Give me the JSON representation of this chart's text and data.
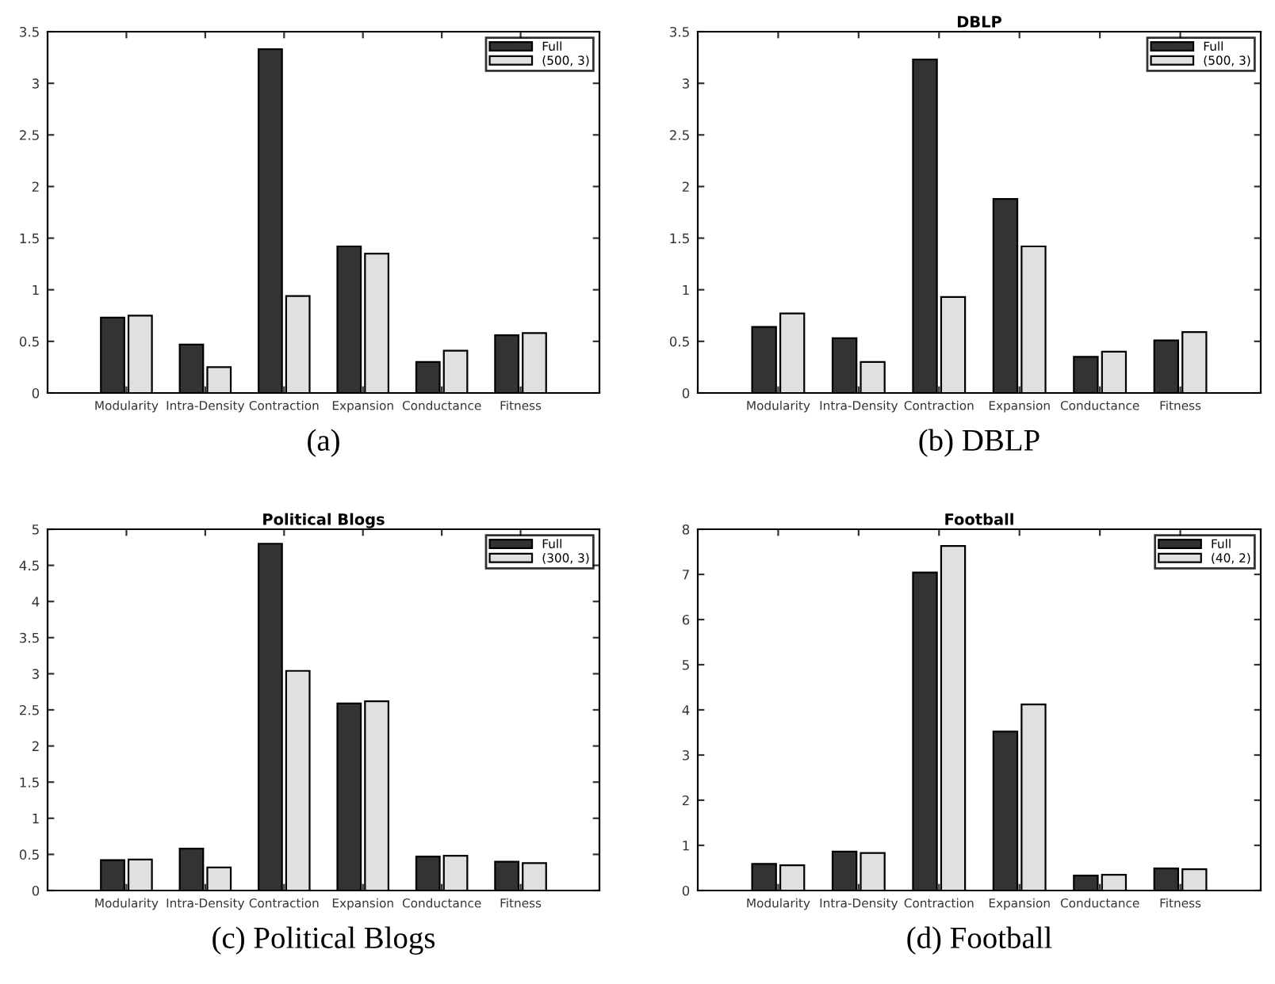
{
  "chart_data": [
    {
      "type": "bar",
      "categories": [
        "Modularity",
        "Intra-Density",
        "Contraction",
        "Expansion",
        "Conductance",
        "Fitness"
      ],
      "series": [
        {
          "name": "Full",
          "color": "#333333",
          "values": [
            0.73,
            0.47,
            3.33,
            1.42,
            0.3,
            0.56
          ]
        },
        {
          "name": "(500, 3)",
          "color": "#e0e0e0",
          "values": [
            0.75,
            0.25,
            0.94,
            1.35,
            0.41,
            0.58
          ]
        }
      ],
      "ylim": [
        0,
        3.5
      ],
      "yticks": [
        0,
        0.5,
        1,
        1.5,
        2,
        2.5,
        3,
        3.5
      ],
      "grid": false,
      "legend": "top right",
      "annotations": [
        "(a)"
      ]
    },
    {
      "type": "bar",
      "title": "DBLP",
      "categories": [
        "Modularity",
        "Intra-Density",
        "Contraction",
        "Expansion",
        "Conductance",
        "Fitness"
      ],
      "series": [
        {
          "name": "Full",
          "color": "#333333",
          "values": [
            0.64,
            0.53,
            3.23,
            1.88,
            0.35,
            0.51
          ]
        },
        {
          "name": "(500, 3)",
          "color": "#e0e0e0",
          "values": [
            0.77,
            0.3,
            0.93,
            1.42,
            0.4,
            0.59
          ]
        }
      ],
      "ylim": [
        0,
        3.5
      ],
      "yticks": [
        0,
        0.5,
        1,
        1.5,
        2,
        2.5,
        3,
        3.5
      ],
      "grid": false,
      "legend": "top right",
      "annotations": [
        "(b) DBLP"
      ]
    },
    {
      "type": "bar",
      "title": "Political Blogs",
      "categories": [
        "Modularity",
        "Intra-Density",
        "Contraction",
        "Expansion",
        "Conductance",
        "Fitness"
      ],
      "series": [
        {
          "name": "Full",
          "color": "#333333",
          "values": [
            0.42,
            0.58,
            4.8,
            2.59,
            0.47,
            0.4
          ]
        },
        {
          "name": "(300, 3)",
          "color": "#e0e0e0",
          "values": [
            0.43,
            0.32,
            3.04,
            2.62,
            0.48,
            0.38
          ]
        }
      ],
      "ylim": [
        0,
        5
      ],
      "yticks": [
        0,
        0.5,
        1,
        1.5,
        2,
        2.5,
        3,
        3.5,
        4,
        4.5,
        5
      ],
      "grid": false,
      "legend": "top right",
      "annotations": [
        "(c) Political Blogs"
      ]
    },
    {
      "type": "bar",
      "title": "Football",
      "categories": [
        "Modularity",
        "Intra-Density",
        "Contraction",
        "Expansion",
        "Conductance",
        "Fitness"
      ],
      "series": [
        {
          "name": "Full",
          "color": "#333333",
          "values": [
            0.59,
            0.86,
            7.04,
            3.52,
            0.33,
            0.49
          ]
        },
        {
          "name": "(40, 2)",
          "color": "#e0e0e0",
          "values": [
            0.56,
            0.83,
            7.63,
            4.12,
            0.35,
            0.47
          ]
        }
      ],
      "ylim": [
        0,
        8
      ],
      "yticks": [
        0,
        1,
        2,
        3,
        4,
        5,
        6,
        7,
        8
      ],
      "grid": false,
      "legend": "top right",
      "annotations": [
        "(d) Football"
      ]
    }
  ]
}
